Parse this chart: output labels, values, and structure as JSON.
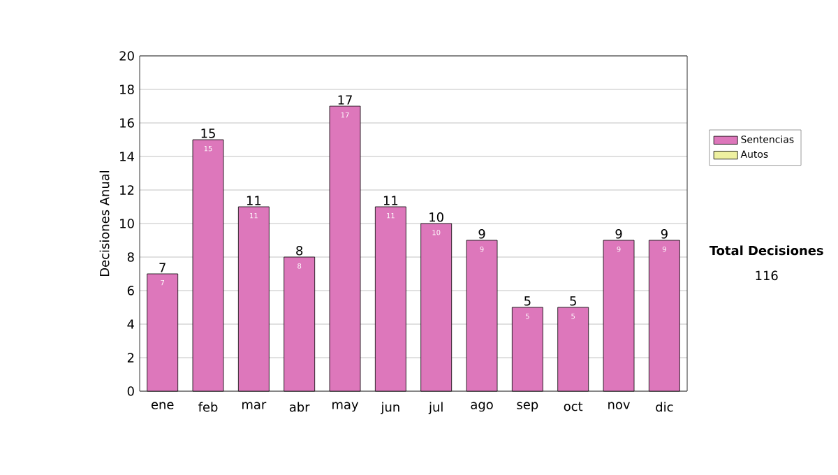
{
  "chart_data": {
    "type": "bar",
    "ylabel": "Decisiones Anual",
    "categories": [
      "ene",
      "feb",
      "mar",
      "abr",
      "may",
      "jun",
      "jul",
      "ago",
      "sep",
      "oct",
      "nov",
      "dic"
    ],
    "series": [
      {
        "name": "Sentencias",
        "color": "#dd77bb",
        "values": [
          7,
          15,
          11,
          8,
          17,
          11,
          10,
          9,
          5,
          5,
          9,
          9
        ]
      },
      {
        "name": "Autos",
        "color": "#eef0a0",
        "values": [
          null,
          null,
          null,
          null,
          null,
          null,
          null,
          null,
          null,
          null,
          null,
          null
        ]
      }
    ],
    "totals": [
      "7",
      "15",
      "11",
      "8",
      "17",
      "11",
      "10",
      "9",
      "5",
      "5",
      "9",
      "9"
    ],
    "data_labels": true,
    "ylim": [
      0,
      20
    ],
    "yticks": [
      0,
      2,
      4,
      6,
      8,
      10,
      12,
      14,
      16,
      18,
      20
    ],
    "grid": "y",
    "legend": "right",
    "annotations": [
      "Total Decisiones",
      "116"
    ]
  }
}
